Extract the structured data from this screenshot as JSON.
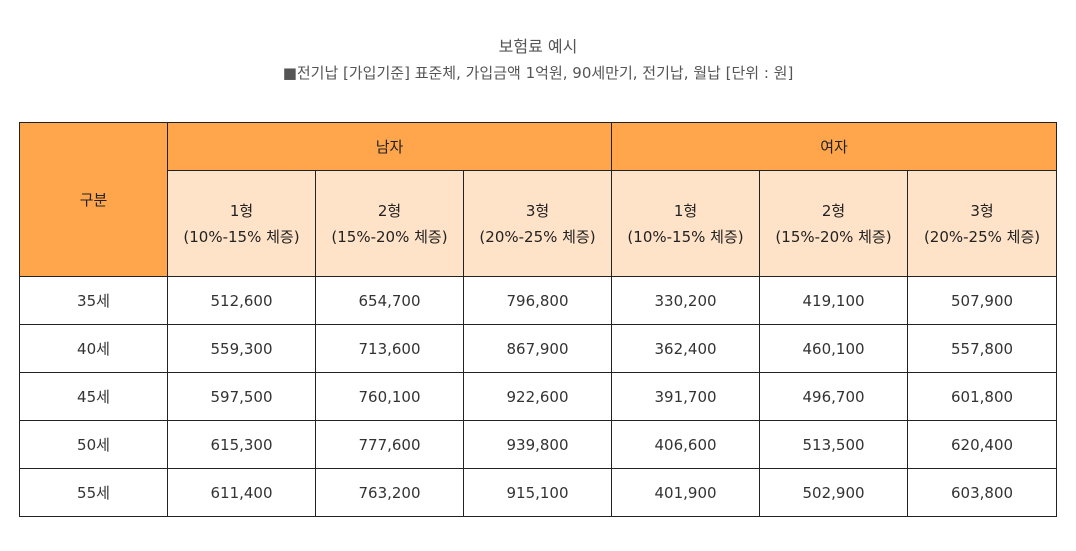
{
  "title": "보험료 예시",
  "subtitle": "■전기납 [가입기준] 표준체, 가입금액 1억원, 90세만기, 전기납, 월납 [단위 : 원]",
  "table": {
    "corner_label": "구분",
    "groups": [
      "남자",
      "여자"
    ],
    "types": [
      {
        "name": "1형",
        "range": "(10%-15% 체증)"
      },
      {
        "name": "2형",
        "range": "(15%-20% 체증)"
      },
      {
        "name": "3형",
        "range": "(20%-25% 체증)"
      },
      {
        "name": "1형",
        "range": "(10%-15% 체증)"
      },
      {
        "name": "2형",
        "range": "(15%-20% 체증)"
      },
      {
        "name": "3형",
        "range": "(20%-25% 체증)"
      }
    ],
    "rows": [
      {
        "age": "35세",
        "values": [
          "512,600",
          "654,700",
          "796,800",
          "330,200",
          "419,100",
          "507,900"
        ]
      },
      {
        "age": "40세",
        "values": [
          "559,300",
          "713,600",
          "867,900",
          "362,400",
          "460,100",
          "557,800"
        ]
      },
      {
        "age": "45세",
        "values": [
          "597,500",
          "760,100",
          "922,600",
          "391,700",
          "496,700",
          "601,800"
        ]
      },
      {
        "age": "50세",
        "values": [
          "615,300",
          "777,600",
          "939,800",
          "406,600",
          "513,500",
          "620,400"
        ]
      },
      {
        "age": "55세",
        "values": [
          "611,400",
          "763,200",
          "915,100",
          "401,900",
          "502,900",
          "603,800"
        ]
      }
    ]
  },
  "colors": {
    "header": "#ffa64d",
    "subheader": "#ffe3c8",
    "border": "#222222"
  }
}
